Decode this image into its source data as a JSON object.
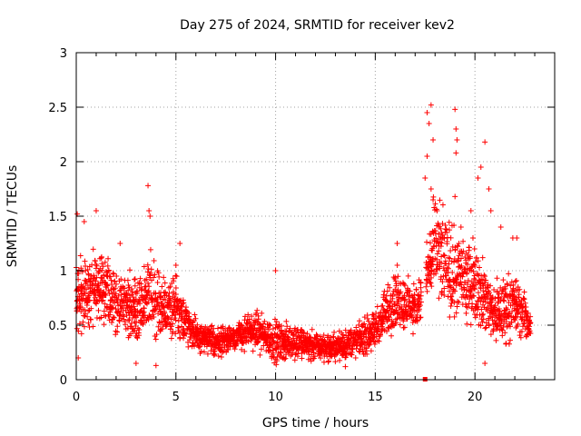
{
  "chart_data": {
    "type": "scatter",
    "title": "Day 275 of 2024, SRMTID for receiver kev2",
    "xlabel": "GPS time / hours",
    "ylabel": "SRMTID / TECUs",
    "xlim": [
      0,
      24
    ],
    "ylim": [
      0,
      3
    ],
    "xticks": [
      0,
      5,
      10,
      15,
      20
    ],
    "xtick_labels": [
      "0",
      "5",
      "10",
      "15",
      "20"
    ],
    "yticks": [
      0,
      0.5,
      1,
      1.5,
      2,
      2.5,
      3
    ],
    "ytick_labels": [
      "0",
      "0.5",
      "1",
      "1.5",
      "2",
      "2.5",
      "3"
    ],
    "grid": true,
    "marker": "+",
    "color": "#ff0000",
    "gap_marker": {
      "x": 17.5,
      "y": 0
    },
    "series": [
      {
        "name": "SRMTID",
        "data_note": "approximate envelope read from the plot: hour-centered mean and spread of dense point cloud",
        "profile": [
          {
            "x": 0.0,
            "mean": 0.75,
            "spread": 0.45
          },
          {
            "x": 1.0,
            "mean": 0.85,
            "spread": 0.5
          },
          {
            "x": 2.0,
            "mean": 0.7,
            "spread": 0.4
          },
          {
            "x": 3.0,
            "mean": 0.65,
            "spread": 0.35
          },
          {
            "x": 3.7,
            "mean": 0.8,
            "spread": 0.5
          },
          {
            "x": 4.5,
            "mean": 0.6,
            "spread": 0.35
          },
          {
            "x": 5.0,
            "mean": 0.7,
            "spread": 0.4
          },
          {
            "x": 6.0,
            "mean": 0.4,
            "spread": 0.2
          },
          {
            "x": 7.0,
            "mean": 0.35,
            "spread": 0.18
          },
          {
            "x": 8.0,
            "mean": 0.4,
            "spread": 0.2
          },
          {
            "x": 9.0,
            "mean": 0.45,
            "spread": 0.22
          },
          {
            "x": 10.0,
            "mean": 0.35,
            "spread": 0.25
          },
          {
            "x": 11.0,
            "mean": 0.35,
            "spread": 0.2
          },
          {
            "x": 12.0,
            "mean": 0.3,
            "spread": 0.18
          },
          {
            "x": 13.0,
            "mean": 0.3,
            "spread": 0.18
          },
          {
            "x": 14.0,
            "mean": 0.35,
            "spread": 0.2
          },
          {
            "x": 15.0,
            "mean": 0.45,
            "spread": 0.25
          },
          {
            "x": 16.0,
            "mean": 0.75,
            "spread": 0.35
          },
          {
            "x": 17.0,
            "mean": 0.65,
            "spread": 0.3
          },
          {
            "x": 17.5,
            "mean": 0.9,
            "spread": 0.35
          },
          {
            "x": 18.0,
            "mean": 1.2,
            "spread": 0.6
          },
          {
            "x": 19.0,
            "mean": 0.95,
            "spread": 0.55
          },
          {
            "x": 20.0,
            "mean": 0.9,
            "spread": 0.5
          },
          {
            "x": 21.0,
            "mean": 0.6,
            "spread": 0.4
          },
          {
            "x": 22.0,
            "mean": 0.7,
            "spread": 0.4
          },
          {
            "x": 22.8,
            "mean": 0.5,
            "spread": 0.2
          }
        ],
        "outliers": [
          [
            0.05,
            1.52
          ],
          [
            0.4,
            1.45
          ],
          [
            1.0,
            1.55
          ],
          [
            2.2,
            1.25
          ],
          [
            3.6,
            1.78
          ],
          [
            3.65,
            1.55
          ],
          [
            3.7,
            1.5
          ],
          [
            5.2,
            1.25
          ],
          [
            5.0,
            1.05
          ],
          [
            10.0,
            1.0
          ],
          [
            16.1,
            1.25
          ],
          [
            17.6,
            2.45
          ],
          [
            17.8,
            2.52
          ],
          [
            17.7,
            2.35
          ],
          [
            17.9,
            2.2
          ],
          [
            17.6,
            2.05
          ],
          [
            17.5,
            1.85
          ],
          [
            17.8,
            1.75
          ],
          [
            17.9,
            1.65
          ],
          [
            18.1,
            1.55
          ],
          [
            19.0,
            2.48
          ],
          [
            19.05,
            2.3
          ],
          [
            19.1,
            2.2
          ],
          [
            19.05,
            2.08
          ],
          [
            19.0,
            1.68
          ],
          [
            19.3,
            1.4
          ],
          [
            19.8,
            1.55
          ],
          [
            19.9,
            1.3
          ],
          [
            20.15,
            1.85
          ],
          [
            20.3,
            1.95
          ],
          [
            20.5,
            2.18
          ],
          [
            20.7,
            1.75
          ],
          [
            20.8,
            1.55
          ],
          [
            21.3,
            1.4
          ],
          [
            21.9,
            1.3
          ],
          [
            22.1,
            1.3
          ],
          [
            0.1,
            0.2
          ],
          [
            3.0,
            0.15
          ],
          [
            4.0,
            0.13
          ],
          [
            13.5,
            0.12
          ],
          [
            20.5,
            0.15
          ]
        ]
      }
    ]
  }
}
